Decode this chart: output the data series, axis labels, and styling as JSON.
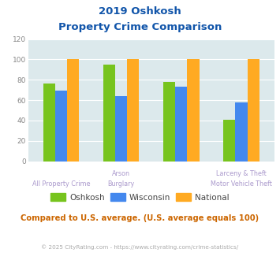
{
  "title_line1": "2019 Oshkosh",
  "title_line2": "Property Crime Comparison",
  "groups": [
    {
      "oshkosh": 76,
      "wisconsin": 69,
      "national": 100
    },
    {
      "oshkosh": 95,
      "wisconsin": 64,
      "national": 100
    },
    {
      "oshkosh": 78,
      "wisconsin": 73,
      "national": 100
    },
    {
      "oshkosh": 41,
      "wisconsin": 58,
      "national": 100
    }
  ],
  "top_labels": [
    "Arson",
    "",
    "Larceny & Theft",
    ""
  ],
  "bottom_labels": [
    "All Property Crime",
    "Burglary",
    "",
    "Motor Vehicle Theft"
  ],
  "color_oshkosh": "#77c41e",
  "color_wisconsin": "#4488ee",
  "color_national": "#ffaa22",
  "color_bg": "#dce9ec",
  "color_title": "#1155aa",
  "color_note": "#cc6600",
  "color_label": "#aa99cc",
  "color_footer": "#aaaaaa",
  "ylim": [
    0,
    120
  ],
  "yticks": [
    0,
    20,
    40,
    60,
    80,
    100,
    120
  ],
  "footer": "© 2025 CityRating.com - https://www.cityrating.com/crime-statistics/",
  "subtitle_note": "Compared to U.S. average. (U.S. average equals 100)",
  "legend_labels": [
    "Oshkosh",
    "Wisconsin",
    "National"
  ]
}
